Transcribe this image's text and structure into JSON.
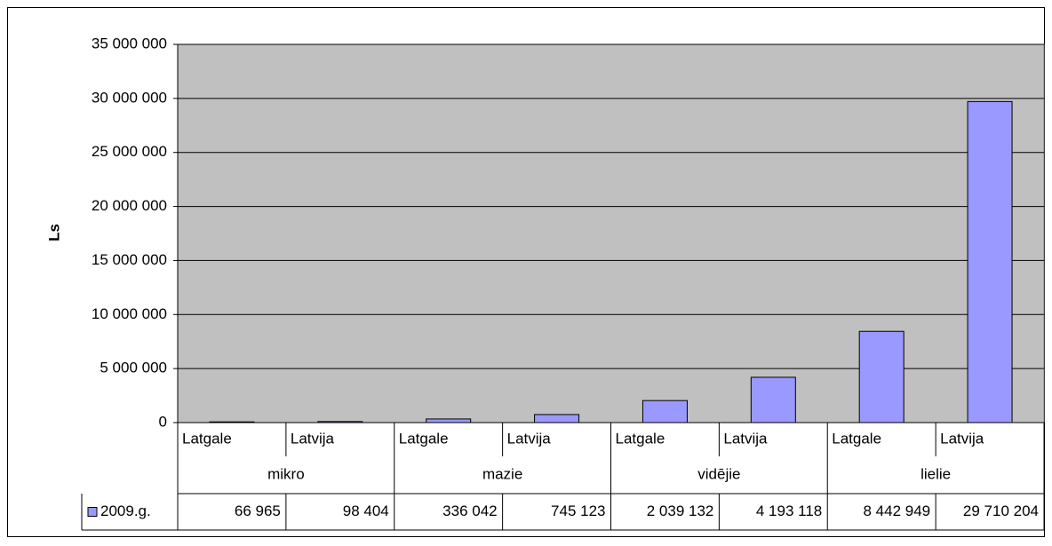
{
  "chart_data": {
    "type": "bar",
    "y_label": "Ls",
    "categories": [
      "Latgale",
      "Latvija",
      "Latgale",
      "Latvija",
      "Latgale",
      "Latvija",
      "Latgale",
      "Latvija"
    ],
    "groups": [
      "mikro",
      "mazie",
      "vidējie",
      "lielie"
    ],
    "series": [
      {
        "name": "2009.g.",
        "color": "#9999ff",
        "values": [
          66965,
          98404,
          336042,
          745123,
          2039132,
          4193118,
          8442949,
          29710204
        ],
        "value_labels": [
          "66 965",
          "98 404",
          "336 042",
          "745 123",
          "2 039 132",
          "4 193 118",
          "8 442 949",
          "29 710 204"
        ]
      }
    ],
    "ylim": [
      0,
      35000000
    ],
    "yticks": [
      0,
      {
        "value": 5000000,
        "label": "5 000 000"
      },
      {
        "value": 10000000,
        "label": "10 000 000"
      },
      {
        "value": 15000000,
        "label": "15 000 000"
      },
      {
        "value": 20000000,
        "label": "20 000 000"
      },
      {
        "value": 25000000,
        "label": "25 000 000"
      },
      {
        "value": 30000000,
        "label": "30 000 000"
      },
      {
        "value": 35000000,
        "label": "35 000 000"
      }
    ],
    "grid": true,
    "plot_background": "#c0c0c0"
  }
}
